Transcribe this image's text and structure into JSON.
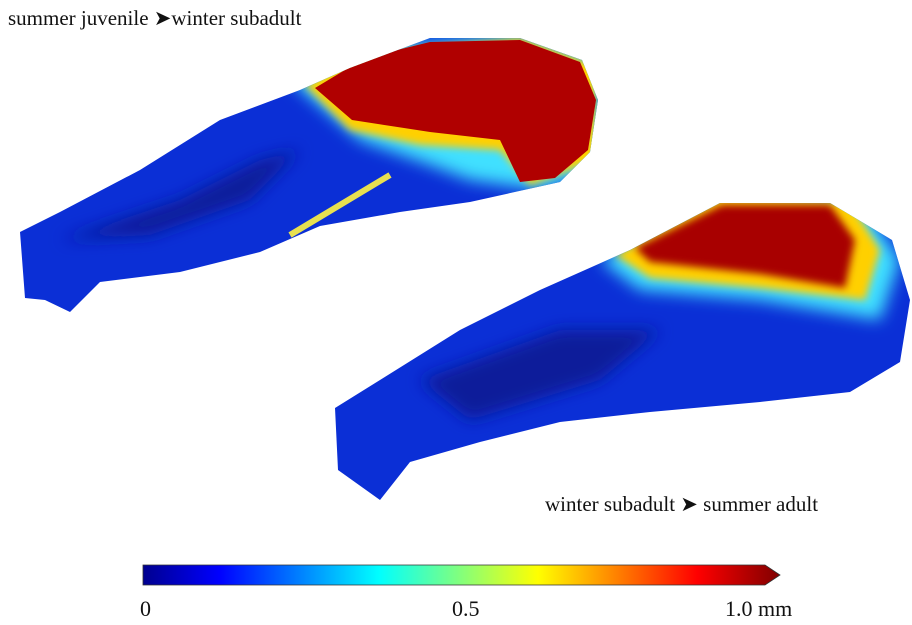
{
  "panels": [
    {
      "label": "summer juvenile ➤winter subadult"
    },
    {
      "label": "winter subadult ➤ summer adult"
    }
  ],
  "colorbar": {
    "ticks": [
      "0",
      "0.5",
      "1.0 mm"
    ]
  }
}
